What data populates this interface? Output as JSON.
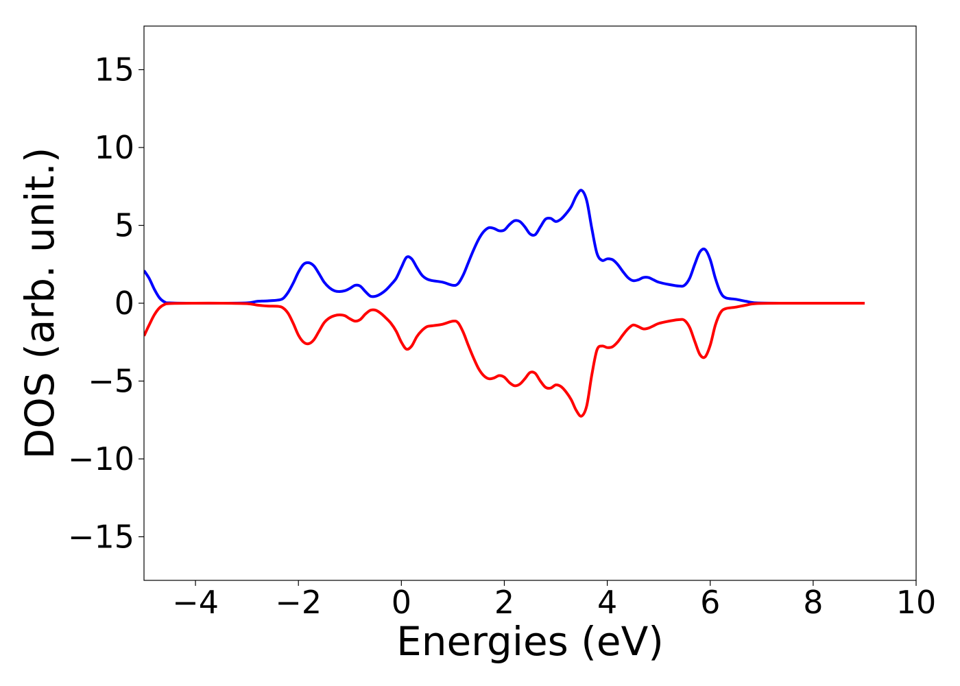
{
  "chart_data": {
    "type": "line",
    "xlabel": "Energies (eV)",
    "ylabel": "DOS (arb. unit.)",
    "xlim": [
      -5,
      10
    ],
    "ylim": [
      -17.8,
      17.8
    ],
    "xticks": [
      -4,
      -2,
      0,
      2,
      4,
      6,
      8,
      10
    ],
    "xtick_labels": [
      "−4",
      "−2",
      "0",
      "2",
      "4",
      "6",
      "8",
      "10"
    ],
    "yticks": [
      15,
      10,
      5,
      0,
      -5,
      -10,
      -15
    ],
    "ytick_labels": [
      "15",
      "10",
      "5",
      "0",
      "−5",
      "−10",
      "−15"
    ],
    "grid": false,
    "legend": "none",
    "series": [
      {
        "color": "#0000ff",
        "x": [
          -5.0,
          -4.9,
          -4.8,
          -4.7,
          -4.6,
          -4.5,
          -4.0,
          -3.5,
          -3.0,
          -2.8,
          -2.6,
          -2.4,
          -2.3,
          -2.2,
          -2.1,
          -2.0,
          -1.9,
          -1.8,
          -1.7,
          -1.6,
          -1.5,
          -1.4,
          -1.3,
          -1.2,
          -1.1,
          -1.0,
          -0.9,
          -0.8,
          -0.7,
          -0.6,
          -0.5,
          -0.4,
          -0.3,
          -0.2,
          -0.1,
          0.0,
          0.1,
          0.2,
          0.3,
          0.4,
          0.5,
          0.6,
          0.8,
          1.0,
          1.1,
          1.2,
          1.3,
          1.4,
          1.5,
          1.6,
          1.7,
          1.8,
          1.9,
          2.0,
          2.1,
          2.2,
          2.3,
          2.4,
          2.5,
          2.6,
          2.7,
          2.8,
          2.9,
          3.0,
          3.1,
          3.2,
          3.3,
          3.4,
          3.5,
          3.6,
          3.7,
          3.8,
          3.9,
          4.0,
          4.1,
          4.2,
          4.3,
          4.4,
          4.5,
          4.6,
          4.7,
          4.8,
          4.9,
          5.0,
          5.2,
          5.4,
          5.5,
          5.6,
          5.7,
          5.8,
          5.9,
          6.0,
          6.1,
          6.2,
          6.3,
          6.5,
          6.7,
          6.9,
          7.5,
          8.0,
          9.0
        ],
        "y": [
          2.1,
          1.6,
          0.9,
          0.35,
          0.08,
          0.02,
          0.0,
          0.0,
          0.02,
          0.12,
          0.15,
          0.2,
          0.3,
          0.7,
          1.3,
          2.0,
          2.5,
          2.6,
          2.4,
          1.9,
          1.35,
          1.0,
          0.8,
          0.75,
          0.8,
          0.95,
          1.15,
          1.1,
          0.75,
          0.45,
          0.45,
          0.6,
          0.85,
          1.2,
          1.6,
          2.3,
          2.95,
          2.85,
          2.3,
          1.8,
          1.55,
          1.45,
          1.35,
          1.15,
          1.25,
          1.8,
          2.6,
          3.4,
          4.1,
          4.6,
          4.85,
          4.8,
          4.65,
          4.7,
          5.05,
          5.3,
          5.25,
          4.9,
          4.45,
          4.4,
          4.9,
          5.4,
          5.45,
          5.25,
          5.4,
          5.75,
          6.2,
          6.9,
          7.25,
          6.6,
          4.8,
          3.2,
          2.75,
          2.85,
          2.8,
          2.5,
          2.05,
          1.65,
          1.45,
          1.5,
          1.65,
          1.65,
          1.5,
          1.35,
          1.2,
          1.1,
          1.15,
          1.6,
          2.5,
          3.3,
          3.45,
          2.8,
          1.6,
          0.7,
          0.35,
          0.25,
          0.12,
          0.02,
          0.0,
          0.0,
          0.0
        ]
      },
      {
        "color": "#ff0000",
        "x": [
          -5.0,
          -4.9,
          -4.8,
          -4.7,
          -4.6,
          -4.5,
          -4.0,
          -3.5,
          -3.0,
          -2.8,
          -2.6,
          -2.4,
          -2.3,
          -2.2,
          -2.1,
          -2.0,
          -1.9,
          -1.8,
          -1.7,
          -1.6,
          -1.5,
          -1.4,
          -1.3,
          -1.2,
          -1.1,
          -1.0,
          -0.9,
          -0.8,
          -0.7,
          -0.6,
          -0.5,
          -0.4,
          -0.3,
          -0.2,
          -0.1,
          0.0,
          0.1,
          0.2,
          0.3,
          0.4,
          0.5,
          0.6,
          0.8,
          1.0,
          1.1,
          1.2,
          1.3,
          1.4,
          1.5,
          1.6,
          1.7,
          1.8,
          1.9,
          2.0,
          2.1,
          2.2,
          2.3,
          2.4,
          2.5,
          2.6,
          2.7,
          2.8,
          2.9,
          3.0,
          3.1,
          3.2,
          3.3,
          3.4,
          3.5,
          3.6,
          3.7,
          3.8,
          3.9,
          4.0,
          4.1,
          4.2,
          4.3,
          4.4,
          4.5,
          4.6,
          4.7,
          4.8,
          4.9,
          5.0,
          5.2,
          5.4,
          5.5,
          5.6,
          5.7,
          5.8,
          5.9,
          6.0,
          6.1,
          6.2,
          6.3,
          6.5,
          6.7,
          6.9,
          7.5,
          8.0,
          9.0
        ],
        "y": [
          -2.1,
          -1.4,
          -0.75,
          -0.3,
          -0.08,
          -0.02,
          0.0,
          0.0,
          -0.03,
          -0.12,
          -0.18,
          -0.2,
          -0.3,
          -0.65,
          -1.3,
          -2.05,
          -2.5,
          -2.6,
          -2.35,
          -1.8,
          -1.25,
          -0.95,
          -0.8,
          -0.75,
          -0.8,
          -1.0,
          -1.15,
          -1.05,
          -0.7,
          -0.45,
          -0.45,
          -0.65,
          -0.95,
          -1.3,
          -1.8,
          -2.5,
          -2.95,
          -2.75,
          -2.15,
          -1.75,
          -1.5,
          -1.45,
          -1.35,
          -1.15,
          -1.25,
          -1.85,
          -2.7,
          -3.5,
          -4.2,
          -4.65,
          -4.85,
          -4.8,
          -4.65,
          -4.75,
          -5.1,
          -5.3,
          -5.2,
          -4.85,
          -4.45,
          -4.5,
          -5.0,
          -5.4,
          -5.45,
          -5.25,
          -5.35,
          -5.7,
          -6.2,
          -6.9,
          -7.25,
          -6.6,
          -4.6,
          -3.0,
          -2.75,
          -2.85,
          -2.8,
          -2.5,
          -2.05,
          -1.65,
          -1.4,
          -1.5,
          -1.65,
          -1.6,
          -1.45,
          -1.3,
          -1.15,
          -1.05,
          -1.1,
          -1.55,
          -2.45,
          -3.3,
          -3.45,
          -2.7,
          -1.4,
          -0.6,
          -0.35,
          -0.25,
          -0.12,
          -0.02,
          0.0,
          0.0,
          0.0
        ]
      }
    ]
  }
}
